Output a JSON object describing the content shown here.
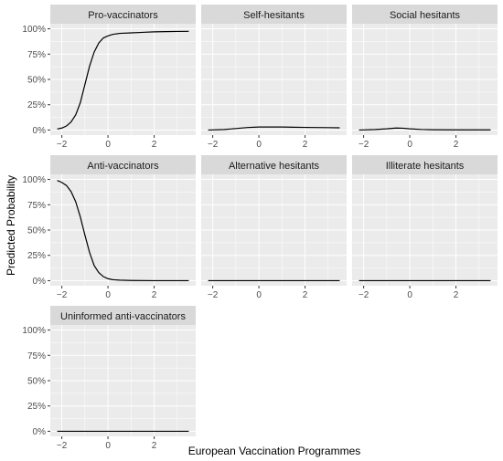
{
  "chart_data": {
    "type": "line",
    "xlabel": "European Vaccination Programmes",
    "ylabel": "Predicted Probability",
    "xlim": [
      -2.5,
      3.8
    ],
    "ylim": [
      -0.05,
      1.05
    ],
    "x_ticks": [
      -2,
      0,
      2
    ],
    "y_ticks": [
      0,
      0.25,
      0.5,
      0.75,
      1.0
    ],
    "y_tick_labels": [
      "0%",
      "25%",
      "50%",
      "75%",
      "100%"
    ],
    "grid": true,
    "legend": "none",
    "line_color": "#000000",
    "panel_background": "#ebebeb",
    "strip_background": "#d9d9d9",
    "gridline_color": "#ffffff",
    "panels": [
      {
        "title": "Pro-vaccinators",
        "x": [
          -2.2,
          -2.0,
          -1.8,
          -1.6,
          -1.4,
          -1.2,
          -1.0,
          -0.8,
          -0.6,
          -0.4,
          -0.2,
          0.0,
          0.2,
          0.5,
          1.0,
          1.5,
          2.0,
          2.5,
          3.0,
          3.5
        ],
        "y": [
          0.01,
          0.02,
          0.04,
          0.08,
          0.15,
          0.27,
          0.45,
          0.63,
          0.77,
          0.86,
          0.91,
          0.93,
          0.945,
          0.955,
          0.96,
          0.965,
          0.97,
          0.972,
          0.974,
          0.975
        ]
      },
      {
        "title": "Self-hesitants",
        "x": [
          -2.2,
          -1.5,
          -1.0,
          -0.5,
          0.0,
          0.5,
          1.0,
          1.5,
          2.0,
          2.5,
          3.0,
          3.5
        ],
        "y": [
          0.0,
          0.005,
          0.015,
          0.025,
          0.03,
          0.03,
          0.03,
          0.028,
          0.026,
          0.025,
          0.024,
          0.022
        ]
      },
      {
        "title": "Social hesitants",
        "x": [
          -2.2,
          -1.5,
          -1.0,
          -0.6,
          -0.3,
          0.0,
          0.5,
          1.0,
          2.0,
          3.0,
          3.5
        ],
        "y": [
          0.0,
          0.005,
          0.012,
          0.02,
          0.018,
          0.012,
          0.006,
          0.003,
          0.002,
          0.002,
          0.002
        ]
      },
      {
        "title": "Anti-vaccinators",
        "x": [
          -2.2,
          -2.0,
          -1.8,
          -1.6,
          -1.4,
          -1.2,
          -1.0,
          -0.8,
          -0.6,
          -0.4,
          -0.2,
          0.0,
          0.2,
          0.5,
          1.0,
          2.0,
          3.0,
          3.5
        ],
        "y": [
          0.99,
          0.97,
          0.94,
          0.88,
          0.78,
          0.63,
          0.45,
          0.28,
          0.15,
          0.08,
          0.04,
          0.02,
          0.01,
          0.005,
          0.002,
          0.0,
          0.0,
          0.0
        ]
      },
      {
        "title": "Alternative hesitants",
        "x": [
          -2.2,
          3.5
        ],
        "y": [
          0.0,
          0.0
        ]
      },
      {
        "title": "Illiterate hesitants",
        "x": [
          -2.2,
          3.5
        ],
        "y": [
          0.0,
          0.0
        ]
      },
      {
        "title": "Uninformed anti-vaccinators",
        "x": [
          -2.2,
          3.5
        ],
        "y": [
          0.0,
          0.0
        ]
      }
    ]
  }
}
